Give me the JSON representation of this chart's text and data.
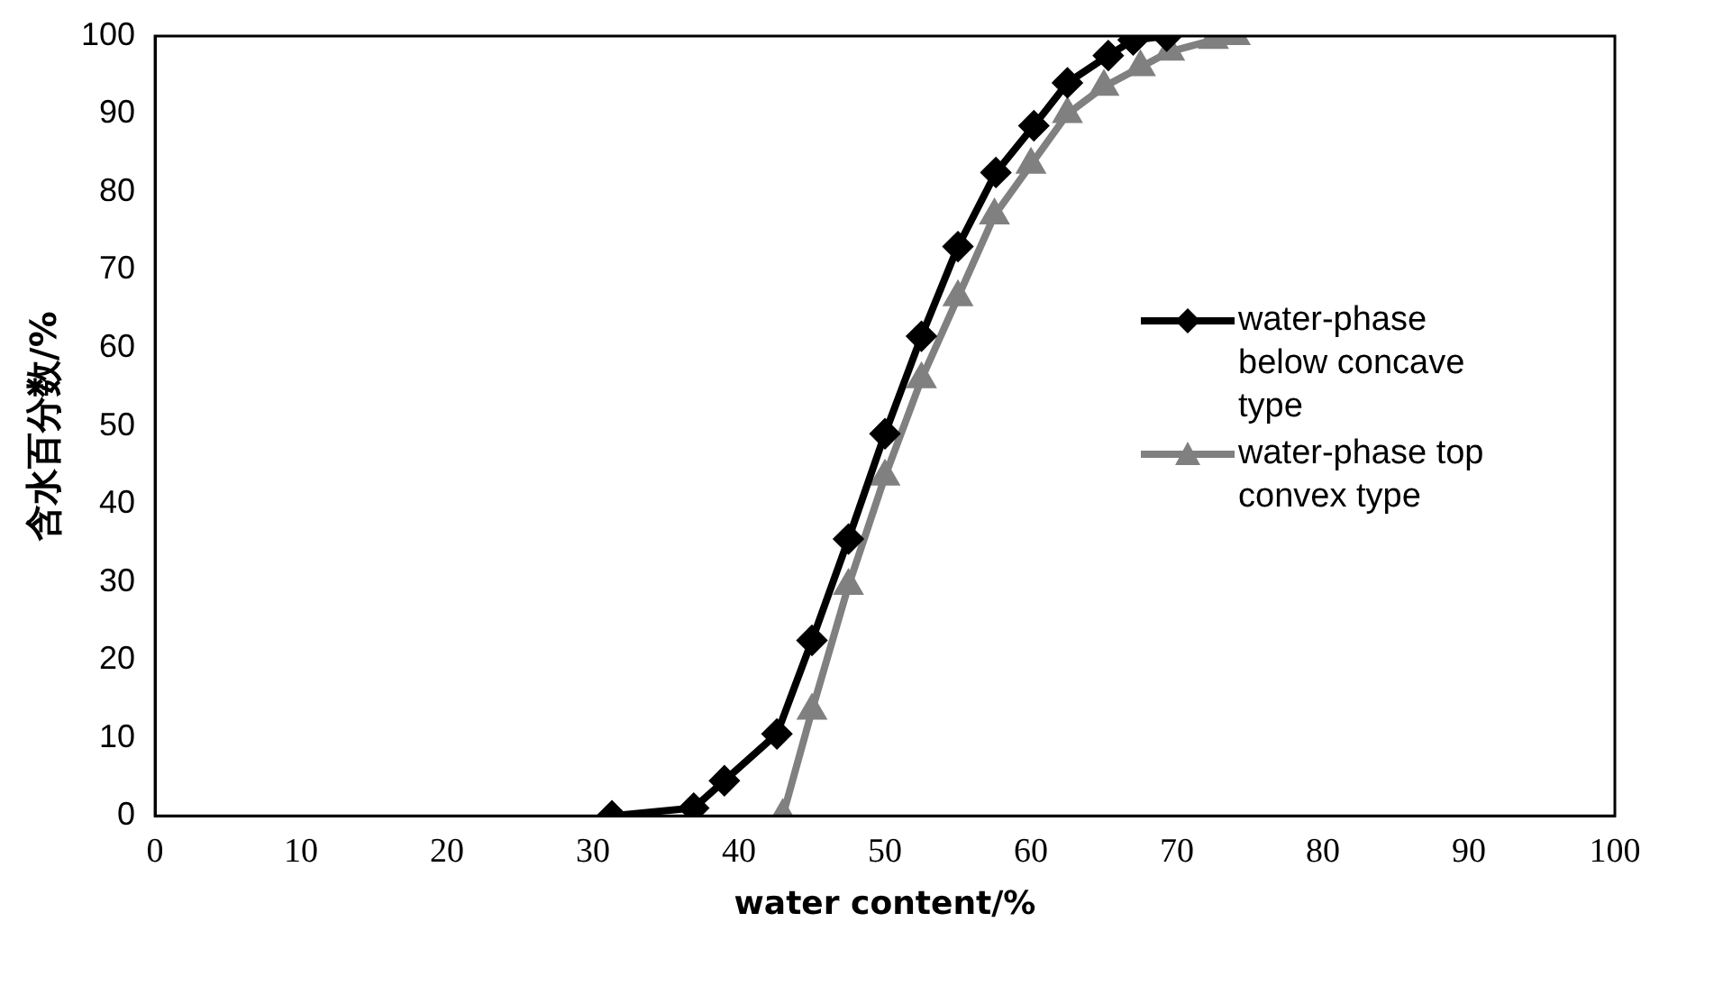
{
  "chart_data": {
    "type": "line",
    "xlabel": "water content/%",
    "ylabel": "含水百分数/%",
    "xlim": [
      0,
      100
    ],
    "xticks": [
      0,
      10,
      20,
      30,
      40,
      50,
      60,
      70,
      80,
      90,
      100
    ],
    "ylim": [
      0,
      100
    ],
    "yticks": [
      0,
      10,
      20,
      30,
      40,
      50,
      60,
      70,
      80,
      90,
      100
    ],
    "grid": false,
    "legend": "right",
    "series": [
      {
        "name": " water-phase below concave type",
        "color": "#000000",
        "marker": "diamond",
        "x": [
          31.3,
          36.9,
          39,
          42.6,
          45,
          47.5,
          50,
          52.5,
          55,
          57.6,
          60.2,
          62.5,
          65.3,
          67,
          69.3
        ],
        "values": [
          0,
          1,
          4.5,
          10.5,
          22.5,
          35.5,
          49,
          61.5,
          73,
          82.5,
          88.5,
          94,
          97.5,
          99.5,
          100
        ]
      },
      {
        "name": "water-phase top convex type",
        "color": "#808080",
        "marker": "triangle",
        "x": [
          43,
          45,
          47.5,
          50,
          52.5,
          55,
          57.5,
          60,
          62.5,
          65,
          67.5,
          69.5,
          72.5,
          74
        ],
        "values": [
          0,
          13.5,
          29.5,
          43.5,
          56,
          66.5,
          77,
          83.5,
          90,
          93.5,
          96,
          98,
          99.5,
          100
        ]
      }
    ]
  }
}
